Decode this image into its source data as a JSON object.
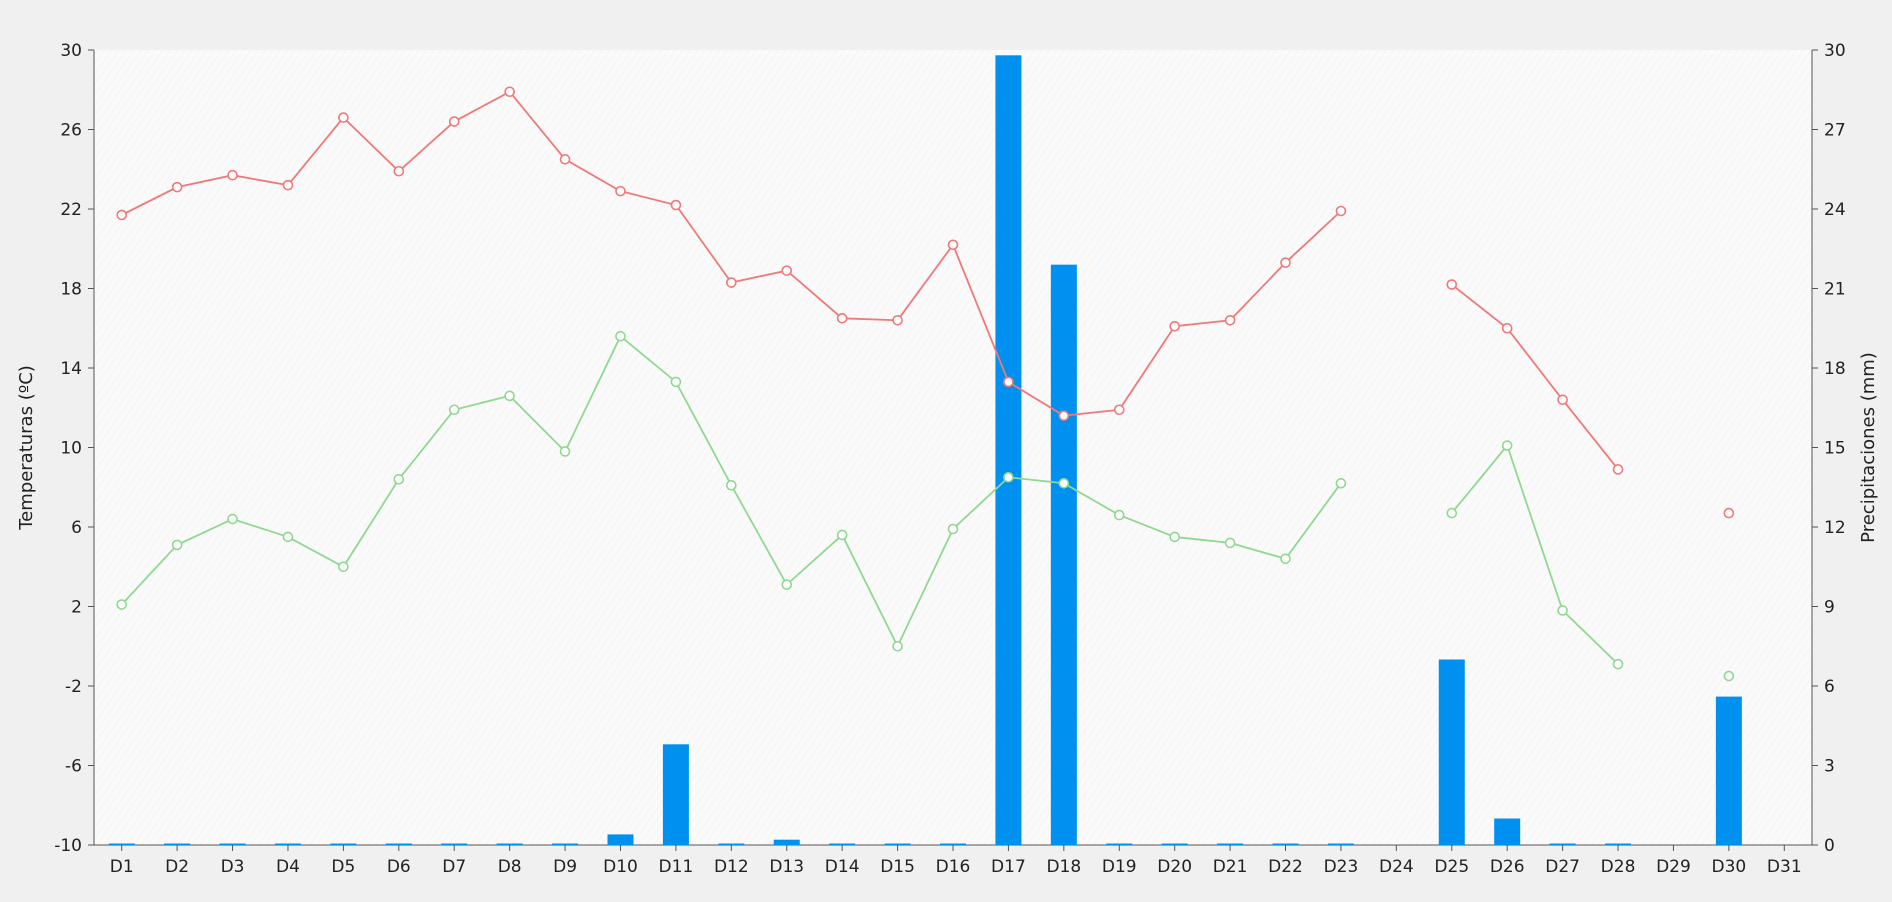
{
  "chart_data": {
    "type": "bar+line",
    "categories": [
      "D1",
      "D2",
      "D3",
      "D4",
      "D5",
      "D6",
      "D7",
      "D8",
      "D9",
      "D10",
      "D11",
      "D12",
      "D13",
      "D14",
      "D15",
      "D16",
      "D17",
      "D18",
      "D19",
      "D20",
      "D21",
      "D22",
      "D23",
      "D24",
      "D25",
      "D26",
      "D27",
      "D28",
      "D29",
      "D30",
      "D31"
    ],
    "ylabel_left": "Temperaturas (ºC)",
    "ylabel_right": "Precipitaciones (mm)",
    "ylim_left": [
      -10,
      30
    ],
    "yticks_left": [
      -10,
      -6,
      -2,
      2,
      6,
      10,
      14,
      18,
      22,
      26,
      30
    ],
    "ylim_right": [
      0,
      30
    ],
    "yticks_right": [
      0,
      3,
      6,
      9,
      12,
      15,
      18,
      21,
      24,
      27,
      30
    ],
    "grid": false,
    "colors": {
      "max": "#f07878",
      "min": "#90d890",
      "precip": "#0090f0",
      "plot_bg": "#fafafa",
      "outer_bg": "#f0f0f0"
    },
    "series": [
      {
        "kind": "line",
        "axis": "left",
        "color_key": "max",
        "values": [
          21.7,
          23.1,
          23.7,
          23.2,
          26.6,
          23.9,
          26.4,
          27.9,
          24.5,
          22.9,
          22.2,
          18.3,
          18.9,
          16.5,
          16.4,
          20.2,
          13.3,
          11.6,
          11.9,
          16.1,
          16.4,
          19.3,
          21.9,
          null,
          18.2,
          16.0,
          12.4,
          8.9,
          null,
          6.7,
          null
        ]
      },
      {
        "kind": "line",
        "axis": "left",
        "color_key": "min",
        "values": [
          2.1,
          5.1,
          6.4,
          5.5,
          4.0,
          8.4,
          11.9,
          12.6,
          9.8,
          15.6,
          13.3,
          8.1,
          3.1,
          5.6,
          0.0,
          5.9,
          8.5,
          8.2,
          6.6,
          5.5,
          5.2,
          4.4,
          8.2,
          null,
          6.7,
          10.1,
          1.8,
          -0.9,
          null,
          -1.5,
          null
        ]
      },
      {
        "kind": "bar",
        "axis": "right",
        "color_key": "precip",
        "values": [
          0,
          0,
          0,
          0,
          0,
          0,
          0,
          0,
          0,
          0.4,
          3.8,
          0,
          0.2,
          0,
          0,
          0,
          29.8,
          21.9,
          0,
          0,
          0,
          0,
          0,
          null,
          7.0,
          1.0,
          0,
          0,
          null,
          5.6,
          null
        ]
      }
    ]
  }
}
